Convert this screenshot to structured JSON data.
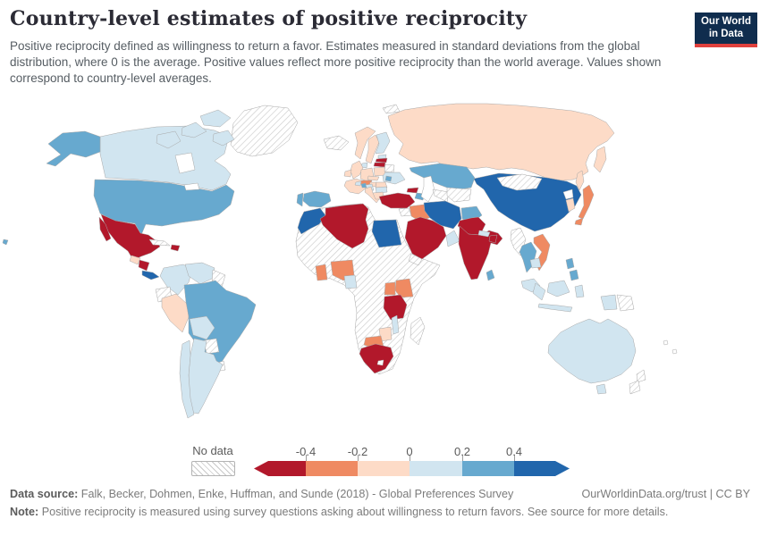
{
  "header": {
    "title": "Country-level estimates of positive reciprocity",
    "subtitle": "Positive reciprocity defined as willingness to return a favor. Estimates measured in standard deviations from the global distribution, where 0 is the average. Positive values reflect more positive reciprocity than the world average. Values shown correspond to country-level averages.",
    "logo": {
      "line1": "Our World",
      "line2": "in Data",
      "bg_color": "#102d4e",
      "accent_color": "#e0403d"
    }
  },
  "legend": {
    "no_data_label": "No data",
    "tick_labels": [
      "-0.4",
      "-0.2",
      "0",
      "0.2",
      "0.4"
    ]
  },
  "footer": {
    "source_label": "Data source:",
    "source_text": "Falk, Becker, Dohmen, Enke, Huffman, and Sunde (2018) - Global Preferences Survey",
    "credit": "OurWorldinData.org/trust | CC BY",
    "note_label": "Note:",
    "note_text": "Positive reciprocity is measured using survey questions asking about willingness to return favors. See source for more details."
  },
  "chart_data": {
    "type": "heatmap",
    "subtype": "world-choropleth",
    "title": "Country-level estimates of positive reciprocity",
    "unit": "standard deviations from the global average",
    "color_scale": {
      "scheme": "diverging red-blue",
      "bins": [
        {
          "range": "< -0.4",
          "color": "#b2182b"
        },
        {
          "range": "-0.4 to -0.2",
          "color": "#ef8a62"
        },
        {
          "range": "-0.2 to 0",
          "color": "#fddbc7"
        },
        {
          "range": "0 to 0.2",
          "color": "#d1e5f0"
        },
        {
          "range": "0.2 to 0.4",
          "color": "#67a9cf"
        },
        {
          "range": "> 0.4",
          "color": "#2166ac"
        }
      ],
      "no_data": {
        "label": "No data",
        "pattern": "diagonal-hatch"
      }
    },
    "countries": {
      "Canada": "0 to 0.2",
      "United States": "0.2 to 0.4",
      "Greenland": "no-data",
      "Mexico": "< -0.4",
      "Guatemala": "-0.2 to 0",
      "Nicaragua": "< -0.4",
      "Costa Rica": "> 0.4",
      "Cuba": "no-data",
      "Haiti": "< -0.4",
      "Colombia": "0 to 0.2",
      "Venezuela": "0 to 0.2",
      "Guyana": "no-data",
      "Ecuador": "no-data",
      "Peru": "-0.2 to 0",
      "Brazil": "0.2 to 0.4",
      "Bolivia": "0 to 0.2",
      "Paraguay": "no-data",
      "Uruguay": "no-data",
      "Argentina": "0 to 0.2",
      "Chile": "0 to 0.2",
      "Iceland": "no-data",
      "Svalbard": "no-data",
      "Norway": "-0.2 to 0",
      "Sweden": "-0.2 to 0",
      "Finland": "0 to 0.2",
      "Estonia": "0 to 0.2",
      "Latvia": "< -0.4",
      "Lithuania": "< -0.4",
      "Denmark": "0 to 0.2",
      "United Kingdom": "-0.2 to 0",
      "Ireland": "-0.2 to 0",
      "Germany": "-0.2 to 0",
      "France": "-0.2 to 0",
      "Spain": "0.2 to 0.4",
      "Portugal": "0.2 to 0.4",
      "Poland": "-0.2 to 0",
      "Belarus": "no-data",
      "Ukraine": "0 to 0.2",
      "Czechia": "-0.2 to 0",
      "Austria": "-0.4 to -0.2",
      "Switzerland": "0 to 0.2",
      "Hungary": "-0.2 to 0",
      "Romania": "-0.2 to 0",
      "Italy": "-0.2 to 0",
      "Croatia": "0.2 to 0.4",
      "Bosnia and Herzegovina": "0 to 0.2",
      "Bulgaria": "0 to 0.2",
      "Greece": "-0.2 to 0",
      "Moldova": "0.2 to 0.4",
      "Russia": "-0.2 to 0",
      "Kazakhstan": "0.2 to 0.4",
      "Turkmenistan": "no-data",
      "Uzbekistan": "no-data",
      "Georgia": "< -0.4",
      "Azerbaijan": "0.2 to 0.4",
      "Turkey": "< -0.4",
      "Syria": "no-data",
      "Iraq": "-0.4 to -0.2",
      "Iran": "> 0.4",
      "Afghanistan": "0.2 to 0.4",
      "Pakistan": "< -0.4",
      "India": "< -0.4",
      "Bangladesh": "< -0.4",
      "Nepal": "0 to 0.2",
      "Sri Lanka": "0.2 to 0.4",
      "China": "> 0.4",
      "Mongolia": "no-data",
      "South Korea": "-0.2 to 0",
      "Japan": "-0.4 to -0.2",
      "Myanmar": "no-data",
      "Thailand": "0.2 to 0.4",
      "Vietnam": "-0.4 to -0.2",
      "Cambodia": "0 to 0.2",
      "Malaysia": "0 to 0.2",
      "Philippines": "0.2 to 0.4",
      "Indonesia": "0 to 0.2",
      "Papua New Guinea": "no-data",
      "Australia": "0 to 0.2",
      "New Zealand": "no-data",
      "Saudi Arabia": "< -0.4",
      "Yemen": "no-data",
      "United Arab Emirates": "0 to 0.2",
      "Morocco": "> 0.4",
      "Algeria": "< -0.4",
      "Libya": "no-data",
      "Egypt": "> 0.4",
      "Mali": "no-data",
      "Niger": "no-data",
      "Chad": "no-data",
      "Sudan": "no-data",
      "Ethiopia": "no-data",
      "Somalia": "no-data",
      "Ghana": "-0.4 to -0.2",
      "Nigeria": "-0.4 to -0.2",
      "Cameroon": "0 to 0.2",
      "DR Congo": "no-data",
      "Uganda": "-0.4 to -0.2",
      "Kenya": "-0.4 to -0.2",
      "Tanzania": "< -0.4",
      "Malawi": "0 to 0.2",
      "Zambia": "no-data",
      "Angola": "no-data",
      "Mozambique": "no-data",
      "Zimbabwe": "-0.2 to 0",
      "Botswana": "-0.4 to -0.2",
      "Namibia": "no-data",
      "South Africa": "< -0.4",
      "Madagascar": "no-data"
    }
  }
}
